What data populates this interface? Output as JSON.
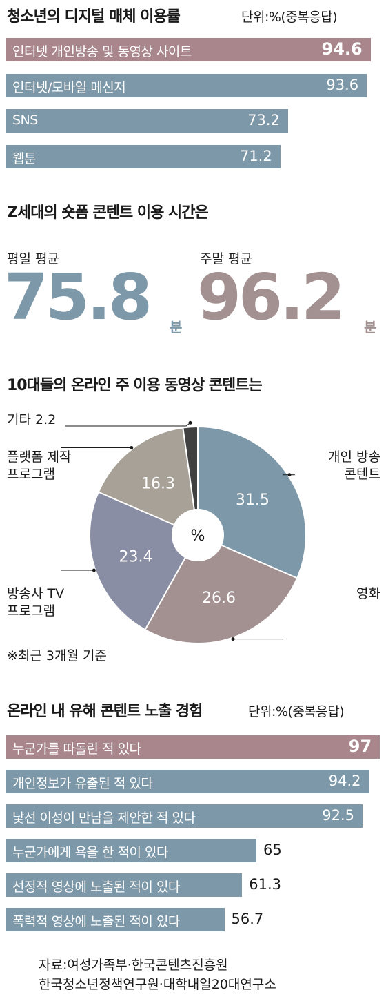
{
  "colors": {
    "highlight": "#a8868c",
    "bar": "#7d98a8",
    "text": "#1a1a1a",
    "pie": {
      "개인 방송 콘텐트": "#7d98a8",
      "영화": "#a39091",
      "방송사 TV 프로그램": "#8a8ea5",
      "플랫폼 제작 프로그램": "#a7a197",
      "기타": "#404040"
    }
  },
  "section1": {
    "title": "청소년의 디지털 매체 이용률",
    "unit": "단위:%(중복응답)"
  },
  "section2": {
    "title": "Z세대의 숏폼 콘텐트 이용 시간은",
    "weekday_label": "평일 평균",
    "weekday_value": "75.8",
    "weekend_label": "주말 평균",
    "weekend_value": "96.2",
    "unit": "분"
  },
  "section3": {
    "title": "10대들의 온라인 주 이용 동영상 콘텐트는",
    "center_label": "%",
    "note": "※최근 3개월 기준",
    "labels": {
      "personal": [
        "개인 방송",
        "콘텐트"
      ],
      "movie": [
        "영화"
      ],
      "tv": [
        "방송사 TV",
        "프로그램"
      ],
      "platform": [
        "플랫폼 제작",
        "프로그램"
      ],
      "etc": [
        "기타 2.2"
      ]
    }
  },
  "section4": {
    "title": "온라인 내 유해 콘텐트 노출 경험",
    "unit": "단위:%(중복응답)"
  },
  "source": [
    "자료:여성가족부·한국콘텐츠진흥원",
    "한국청소년정책연구원·대학내일20대연구소"
  ],
  "chart_data": [
    {
      "type": "bar",
      "title": "청소년의 디지털 매체 이용률",
      "unit": "단위:%(중복응답)",
      "categories": [
        "인터넷 개인방송 및 동영상 사이트",
        "인터넷/모바일 메신저",
        "SNS",
        "웹툰"
      ],
      "values": [
        94.6,
        93.6,
        73.2,
        71.2
      ],
      "labels": [
        "94.6",
        "93.6",
        "73.2",
        "71.2"
      ],
      "xlim": [
        0,
        100
      ],
      "grid": false
    },
    {
      "type": "bar",
      "title": "Z세대의 숏폼 콘텐트 이용 시간은",
      "categories": [
        "평일 평균",
        "주말 평균"
      ],
      "values": [
        75.8,
        96.2
      ],
      "unit": "분"
    },
    {
      "type": "pie",
      "title": "10대들의 온라인 주 이용 동영상 콘텐트는",
      "categories": [
        "개인 방송 콘텐트",
        "영화",
        "방송사 TV 프로그램",
        "플랫폼 제작 프로그램",
        "기타"
      ],
      "values": [
        31.5,
        26.6,
        23.4,
        16.3,
        2.2
      ],
      "labels": [
        "31.5",
        "26.6",
        "23.4",
        "16.3",
        "2.2"
      ],
      "unit": "%"
    },
    {
      "type": "bar",
      "title": "온라인 내 유해 콘텐트 노출 경험",
      "unit": "단위:%(중복응답)",
      "categories": [
        "누군가를 따돌린 적 있다",
        "개인정보가 유출된 적 있다",
        "낯선 이성이 만남을 제안한 적 있다",
        "누군가에게 욕을 한 적이 있다",
        "선정적 영상에 노출된 적이 있다",
        "폭력적 영상에 노출된 적이 있다"
      ],
      "values": [
        97,
        94.2,
        92.5,
        65,
        61.3,
        56.7
      ],
      "labels": [
        "97",
        "94.2",
        "92.5",
        "65",
        "61.3",
        "56.7"
      ],
      "xlim": [
        0,
        100
      ],
      "grid": false
    }
  ]
}
